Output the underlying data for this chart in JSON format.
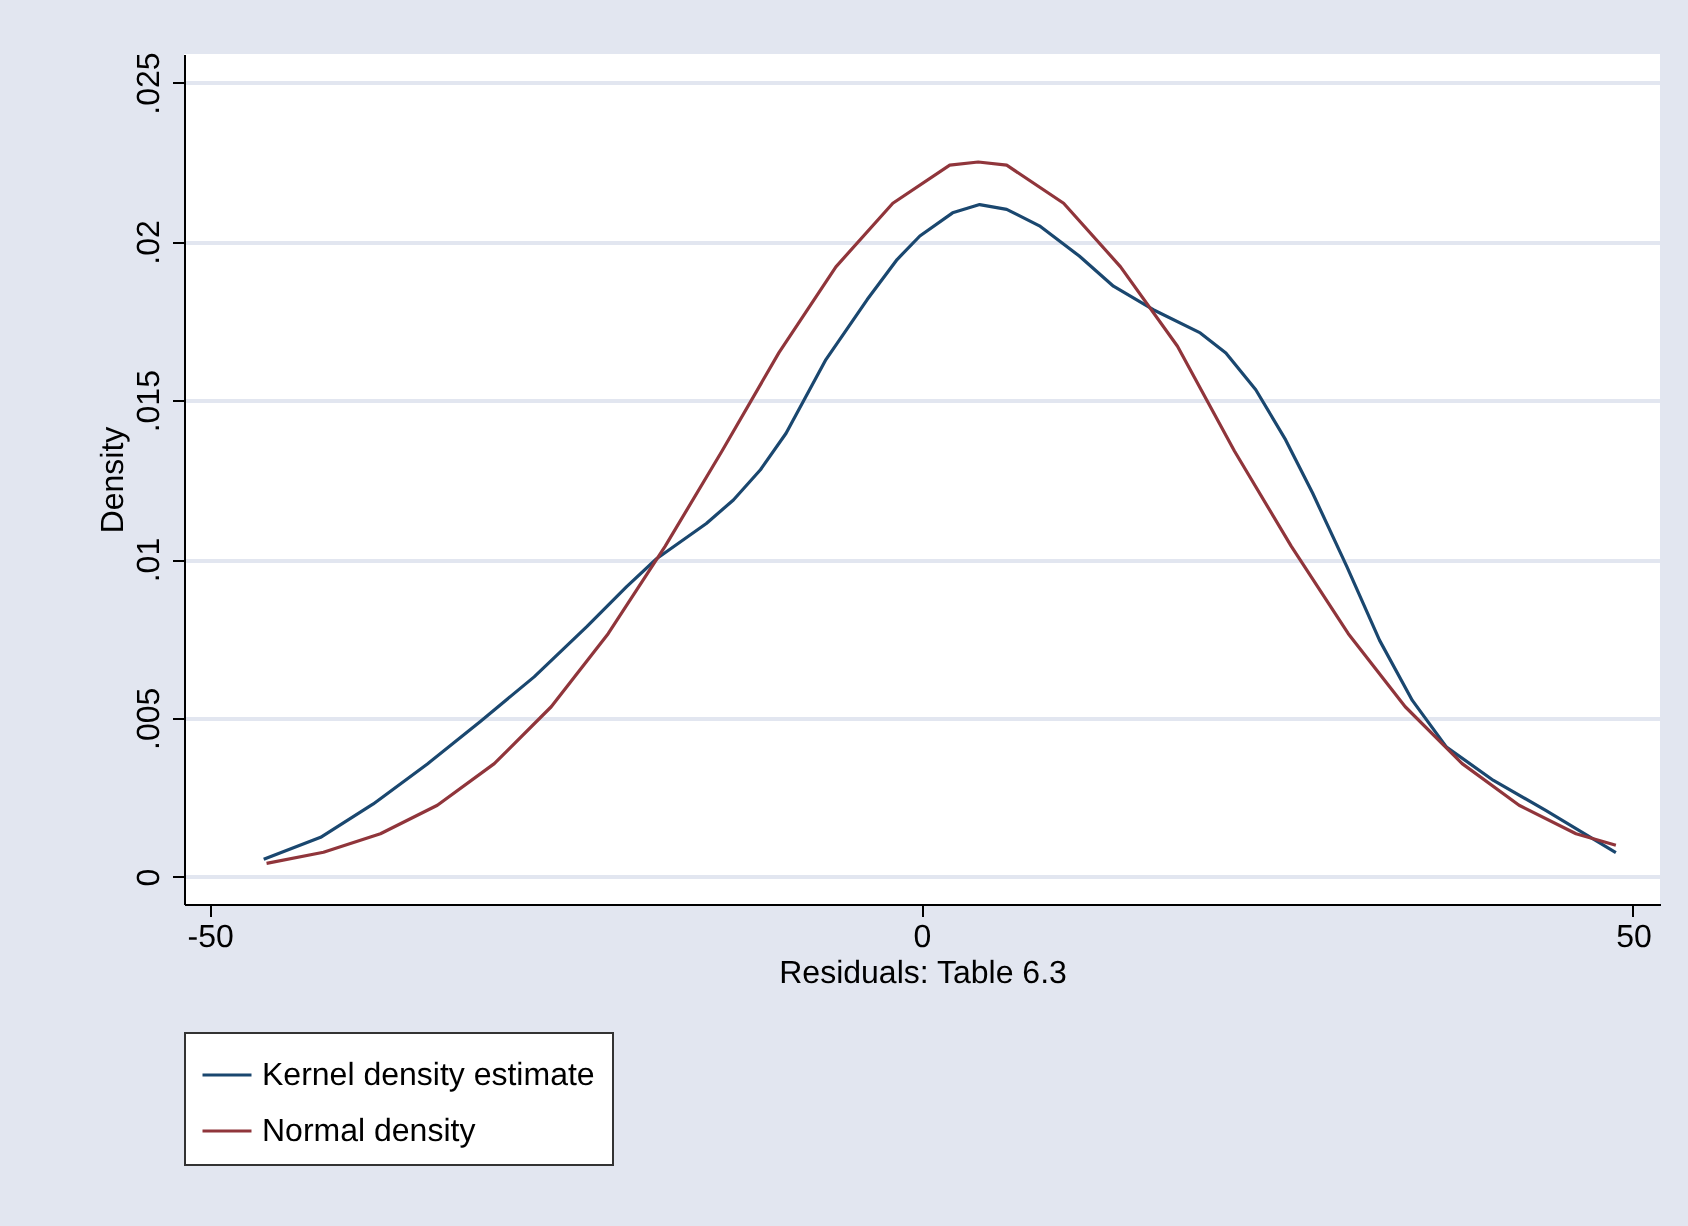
{
  "chart_data": {
    "type": "line",
    "xlabel": "Residuals: Table 6.3",
    "ylabel": "Density",
    "xlim": [
      -51.8,
      51.9
    ],
    "ylim": [
      -0.00086,
      0.0259
    ],
    "xticks": [
      -50,
      0,
      50
    ],
    "yticks": [
      0,
      {
        "value": 0.005,
        "label": ".005"
      },
      {
        "value": 0.01,
        "label": ".01"
      },
      {
        "value": 0.015,
        "label": ".015"
      },
      {
        "value": 0.02,
        "label": ".02"
      },
      {
        "value": 0.025,
        "label": ".025"
      }
    ],
    "grid": "y",
    "legend": "bottom",
    "line_style": "solid",
    "series": [
      {
        "name": "Kernel density estimate",
        "color": "#1a476f",
        "x": [
          -46.2,
          -42.2,
          -38.5,
          -34.7,
          -31.0,
          -27.2,
          -23.5,
          -20.7,
          -18.6,
          -15.1,
          -13.2,
          -11.3,
          -9.5,
          -6.7,
          -3.8,
          -1.7,
          -0.1,
          2.2,
          4.1,
          6.0,
          8.3,
          11.1,
          13.5,
          16.3,
          19.6,
          21.4,
          23.5,
          25.6,
          27.5,
          29.9,
          32.2,
          34.5,
          36.9,
          40.2,
          43.9,
          48.8
        ],
        "values": [
          0.00055,
          0.00124,
          0.00229,
          0.00355,
          0.00488,
          0.00629,
          0.00787,
          0.00913,
          0.01001,
          0.01112,
          0.01186,
          0.01281,
          0.01396,
          0.01628,
          0.01817,
          0.01943,
          0.02017,
          0.0209,
          0.02116,
          0.02101,
          0.02049,
          0.01954,
          0.01859,
          0.01785,
          0.01712,
          0.01649,
          0.01533,
          0.01375,
          0.01207,
          0.00976,
          0.00744,
          0.00555,
          0.00408,
          0.00303,
          0.00208,
          0.00076
        ]
      },
      {
        "name": "Normal density",
        "color": "#90353b",
        "x": [
          -46,
          -42,
          -38,
          -34,
          -30,
          -26,
          -22,
          -18,
          -14,
          -10,
          -6,
          -2,
          2,
          4,
          6,
          10,
          14,
          18,
          22,
          26,
          30,
          34,
          38,
          42,
          46,
          48.8
        ],
        "values": [
          0.00042,
          0.00077,
          0.00135,
          0.00225,
          0.00356,
          0.00535,
          0.00765,
          0.0104,
          0.0134,
          0.0165,
          0.0192,
          0.0212,
          0.0224,
          0.0225,
          0.0224,
          0.0212,
          0.0192,
          0.0167,
          0.0134,
          0.0104,
          0.00765,
          0.00535,
          0.00356,
          0.00225,
          0.00135,
          0.00099
        ]
      }
    ]
  }
}
